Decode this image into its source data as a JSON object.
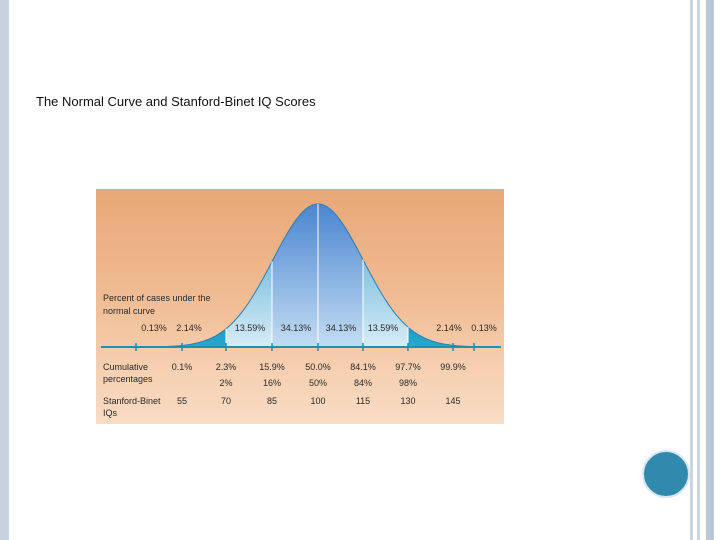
{
  "slide": {
    "title": "The Normal Curve and Stanford-Binet IQ Scores"
  },
  "figure": {
    "percent_label_line1": "Percent of cases under the",
    "percent_label_line2": "normal curve",
    "cumulative_label_line1": "Cumulative",
    "cumulative_label_line2": "percentages",
    "iq_label_line1": "Stanford-Binet",
    "iq_label_line2": "IQs",
    "segment_percents": [
      "0.13%",
      "2.14%",
      "13.59%",
      "34.13%",
      "34.13%",
      "13.59%",
      "2.14%",
      "0.13%"
    ],
    "cumulative_row1": [
      "0.1%",
      "2.3%",
      "15.9%",
      "50.0%",
      "84.1%",
      "97.7%",
      "99.9%"
    ],
    "cumulative_row2": [
      "2%",
      "16%",
      "50%",
      "84%",
      "98%"
    ],
    "iq_scores": [
      "55",
      "70",
      "85",
      "100",
      "115",
      "130",
      "145"
    ]
  },
  "colors": {
    "curve_center": "#4f8fd6",
    "curve_tail": "#1d9bbf",
    "curve_light": "#b9d7ef",
    "baseline": "#1d8fb8",
    "circle": "#2f8aae"
  }
}
